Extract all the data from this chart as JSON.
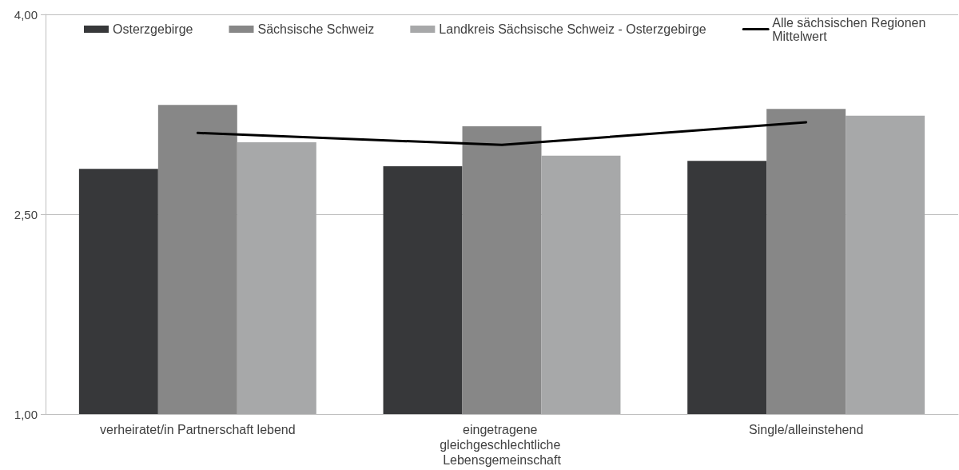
{
  "chart_data": {
    "type": "bar",
    "categories": [
      "verheiratet/in Partnerschaft lebend",
      "eingetragene gleichgeschlechtliche Lebensgemeinschaft",
      "Single/alleinstehend"
    ],
    "series": [
      {
        "name": "Osterzgebirge",
        "color": "#37383a",
        "values": [
          2.84,
          2.86,
          2.9
        ]
      },
      {
        "name": "Sächsische Schweiz",
        "color": "#878787",
        "values": [
          3.32,
          3.16,
          3.29
        ]
      },
      {
        "name": "Landkreis Sächsische Schweiz - Osterzgebirge",
        "color": "#a7a8a9",
        "values": [
          3.04,
          2.94,
          3.24
        ]
      },
      {
        "name": "Alle sächsischen Regionen Mittelwert",
        "type": "line",
        "color": "#000000",
        "values": [
          3.11,
          3.02,
          3.19
        ]
      }
    ],
    "ylim": [
      1,
      4
    ],
    "yticks": [
      {
        "value": 1,
        "label": "1,00"
      },
      {
        "value": 2.5,
        "label": "2,50"
      },
      {
        "value": 4,
        "label": "4,00"
      }
    ],
    "grid": "y",
    "legend": "top",
    "marker": "none",
    "line_style": "solid"
  }
}
